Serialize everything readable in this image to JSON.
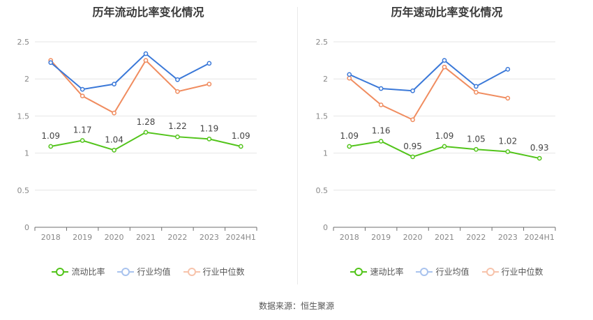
{
  "colors": {
    "company": "#52c41a",
    "industry_avg": "#3a78d8",
    "industry_median": "#f08c5f",
    "grid": "#e6e6e6",
    "axis_text": "#888888"
  },
  "chart_data": [
    {
      "type": "line",
      "title": "历年流动比率变化情况",
      "categories": [
        "2018",
        "2019",
        "2020",
        "2021",
        "2022",
        "2023",
        "2024H1"
      ],
      "ylim": [
        0,
        2.5
      ],
      "yticks": [
        "0",
        "0.5",
        "1",
        "1.5",
        "2",
        "2.5"
      ],
      "grid": true,
      "legend_position": "bottom",
      "series": [
        {
          "name": "流动比率",
          "key": "company",
          "values": [
            1.09,
            1.17,
            1.04,
            1.28,
            1.22,
            1.19,
            1.09
          ],
          "labels": [
            "1.09",
            "1.17",
            "1.04",
            "1.28",
            "1.22",
            "1.19",
            "1.09"
          ]
        },
        {
          "name": "行业均值",
          "key": "industry_avg",
          "values": [
            2.22,
            1.86,
            1.93,
            2.34,
            1.99,
            2.21,
            null
          ]
        },
        {
          "name": "行业中位数",
          "key": "industry_median",
          "values": [
            2.25,
            1.77,
            1.54,
            2.25,
            1.83,
            1.93,
            null
          ]
        }
      ]
    },
    {
      "type": "line",
      "title": "历年速动比率变化情况",
      "categories": [
        "2018",
        "2019",
        "2020",
        "2021",
        "2022",
        "2023",
        "2024H1"
      ],
      "ylim": [
        0,
        2.5
      ],
      "yticks": [
        "0",
        "0.5",
        "1",
        "1.5",
        "2",
        "2.5"
      ],
      "grid": true,
      "legend_position": "bottom",
      "series": [
        {
          "name": "速动比率",
          "key": "company",
          "values": [
            1.09,
            1.16,
            0.95,
            1.09,
            1.05,
            1.02,
            0.93
          ],
          "labels": [
            "1.09",
            "1.16",
            "0.95",
            "1.09",
            "1.05",
            "1.02",
            "0.93"
          ]
        },
        {
          "name": "行业均值",
          "key": "industry_avg",
          "values": [
            2.06,
            1.87,
            1.84,
            2.25,
            1.9,
            2.13,
            null
          ]
        },
        {
          "name": "行业中位数",
          "key": "industry_median",
          "values": [
            2.01,
            1.65,
            1.45,
            2.16,
            1.82,
            1.74,
            null
          ]
        }
      ]
    }
  ],
  "footer": {
    "source": "数据来源：恒生聚源"
  }
}
